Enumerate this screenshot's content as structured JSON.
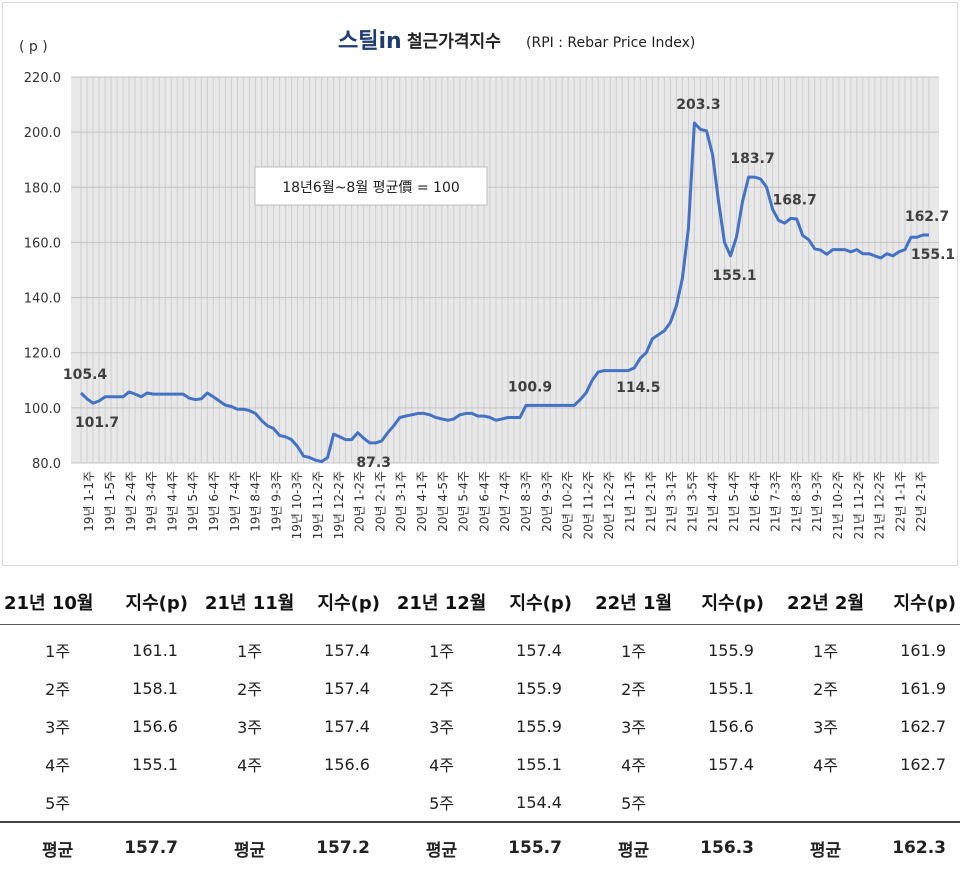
{
  "chart_data": {
    "type": "line",
    "brand": "스틸in",
    "title": "철근가격지수",
    "subtitle": "(RPI : Rebar Price Index)",
    "ylabel": "( p )",
    "ylim": [
      80,
      220
    ],
    "yticks": [
      "220.0",
      "200.0",
      "180.0",
      "160.0",
      "140.0",
      "120.0",
      "100.0",
      "80.0"
    ],
    "grid": true,
    "color": "#4472C4",
    "baseline_note": "18년6월~8월 평균價 = 100",
    "xtick_labels": [
      "19년 1-1주",
      "19년 1-5주",
      "19년 2-4주",
      "19년 3-4주",
      "19년 4-4주",
      "19년 5-4주",
      "19년 6-4주",
      "19년 7-4주",
      "19년 8-4주",
      "19년 9-3주",
      "19년 10-3주",
      "19년 11-2주",
      "19년 12-2주",
      "20년 1-2주",
      "20년 2-1주",
      "20년 3-1주",
      "20년 4-1주",
      "20년 4-5주",
      "20년 5-4주",
      "20년 6-4주",
      "20년 7-4주",
      "20년 8-3주",
      "20년 9-3주",
      "20년 10-2주",
      "20년 11-2주",
      "20년 12-2주",
      "21년 1-1주",
      "21년 2-1주",
      "21년 3-1주",
      "21년 3-5주",
      "21년 4-4주",
      "21년 5-4주",
      "21년 6-4주",
      "21년 7-3주",
      "21년 8-3주",
      "21년 9-3주",
      "21년 10-2주",
      "21년 11-2주",
      "21년 12-2주",
      "22년 1-1주",
      "22년 2-1주"
    ],
    "values": [
      105.4,
      103.3,
      101.7,
      102.5,
      104.0,
      104.0,
      104.0,
      104.0,
      105.8,
      105.0,
      104.0,
      105.4,
      105.0,
      105.0,
      105.0,
      105.0,
      105.0,
      105.0,
      103.5,
      103.0,
      103.3,
      105.4,
      104.0,
      102.5,
      101.0,
      100.5,
      99.5,
      99.5,
      99.0,
      98.0,
      95.5,
      93.5,
      92.5,
      90.0,
      89.5,
      88.5,
      86.0,
      82.5,
      82.0,
      81.0,
      80.5,
      82.0,
      90.5,
      89.5,
      88.5,
      88.5,
      91.0,
      89.0,
      87.3,
      87.3,
      88.0,
      91.0,
      93.5,
      96.5,
      97.0,
      97.5,
      98.0,
      98.0,
      97.5,
      96.5,
      96.0,
      95.5,
      96.0,
      97.5,
      98.0,
      98.0,
      97.0,
      97.0,
      96.5,
      95.5,
      96.0,
      96.5,
      96.5,
      96.5,
      100.9,
      100.9,
      100.9,
      100.9,
      100.9,
      100.9,
      100.9,
      100.9,
      100.9,
      103.0,
      105.5,
      110.0,
      113.0,
      113.5,
      113.5,
      113.5,
      113.5,
      113.5,
      114.5,
      118.0,
      120.0,
      125.0,
      126.5,
      128.0,
      131.0,
      137.0,
      147.0,
      165.0,
      203.3,
      201.0,
      200.5,
      192.0,
      175.0,
      160.0,
      155.1,
      162.0,
      175.0,
      183.7,
      183.7,
      183.0,
      180.0,
      172.0,
      168.0,
      167.0,
      168.7,
      168.5,
      162.5,
      161.0,
      157.7,
      157.2,
      155.7,
      157.4,
      157.4,
      157.4,
      156.6,
      157.4,
      155.9,
      155.9,
      155.1,
      154.4,
      155.9,
      155.1,
      156.6,
      157.4,
      161.9,
      161.9,
      162.7,
      162.7
    ],
    "data_labels": [
      {
        "value": "105.4",
        "pos": "above"
      },
      {
        "value": "101.7",
        "pos": "below"
      },
      {
        "value": "87.3",
        "pos": "below"
      },
      {
        "value": "100.9",
        "pos": "above"
      },
      {
        "value": "114.5",
        "pos": "below"
      },
      {
        "value": "203.3",
        "pos": "above"
      },
      {
        "value": "155.1",
        "pos": "below"
      },
      {
        "value": "183.7",
        "pos": "above"
      },
      {
        "value": "168.7",
        "pos": "above"
      },
      {
        "value": "162.7",
        "pos": "above"
      },
      {
        "value": "155.1",
        "pos": "below"
      }
    ]
  },
  "table": {
    "headers": [
      "21년 10월",
      "지수(p)",
      "21년 11월",
      "지수(p)",
      "21년 12월",
      "지수(p)",
      "22년 1월",
      "지수(p)",
      "22년 2월",
      "지수(p)"
    ],
    "rows": [
      [
        "1주",
        "161.1",
        "1주",
        "157.4",
        "1주",
        "157.4",
        "1주",
        "155.9",
        "1주",
        "161.9"
      ],
      [
        "2주",
        "158.1",
        "2주",
        "157.4",
        "2주",
        "155.9",
        "2주",
        "155.1",
        "2주",
        "161.9"
      ],
      [
        "3주",
        "156.6",
        "3주",
        "157.4",
        "3주",
        "155.9",
        "3주",
        "156.6",
        "3주",
        "162.7"
      ],
      [
        "4주",
        "155.1",
        "4주",
        "156.6",
        "4주",
        "155.1",
        "4주",
        "157.4",
        "4주",
        "162.7"
      ],
      [
        "5주",
        "",
        "",
        "",
        "5주",
        "154.4",
        "5주",
        "",
        "",
        ""
      ]
    ],
    "averages": [
      "평균",
      "157.7",
      "평균",
      "157.2",
      "평균",
      "155.7",
      "평균",
      "156.3",
      "평균",
      "162.3"
    ]
  }
}
